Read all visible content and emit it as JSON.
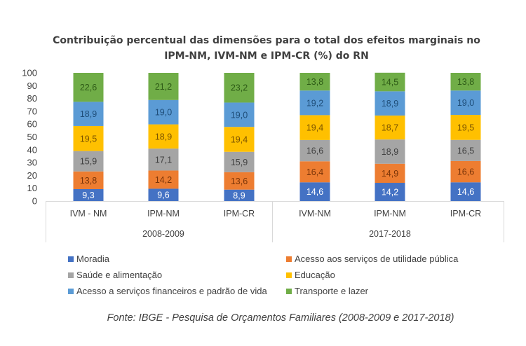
{
  "chart_data": {
    "type": "bar",
    "stacked": true,
    "title": "Contribuição percentual das dimensões para o total dos efeitos marginais no IPM-NM, IVM-NM e IPM-CR (%) do RN",
    "title_lines": [
      "Contribuição percentual das dimensões para o total dos efeitos marginais no",
      "IPM-NM, IVM-NM e IPM-CR (%) do RN"
    ],
    "xlabel": "",
    "ylabel": "",
    "ylim": [
      0,
      100
    ],
    "yticks": [
      "0",
      "10",
      "20",
      "30",
      "40",
      "50",
      "60",
      "70",
      "80",
      "90",
      "100"
    ],
    "grid": false,
    "groups": [
      {
        "label": "2008-2009",
        "categories": [
          "IVM - NM",
          "IPM-NM",
          "IPM-CR"
        ]
      },
      {
        "label": "2017-2018",
        "categories": [
          "IVM-NM",
          "IPM-NM",
          "IPM-CR"
        ]
      }
    ],
    "categories": [
      "IVM - NM",
      "IPM-NM",
      "IPM-CR",
      "IVM-NM",
      "IPM-NM",
      "IPM-CR"
    ],
    "series": [
      {
        "name": "Moradia",
        "color": "#4472C4",
        "label_color": "#ffffff",
        "values": [
          9.3,
          9.6,
          8.9,
          14.6,
          14.2,
          14.6
        ],
        "labels": [
          "9,3",
          "9,6",
          "8,9",
          "14,6",
          "14,2",
          "14,6"
        ]
      },
      {
        "name": "Acesso aos serviços de utilidade pública",
        "color": "#ED7D31",
        "label_color": "#7a3408",
        "values": [
          13.8,
          14.2,
          13.6,
          16.4,
          14.9,
          16.6
        ],
        "labels": [
          "13,8",
          "14,2",
          "13,6",
          "16,4",
          "14,9",
          "16,6"
        ]
      },
      {
        "name": "Saúde e alimentação",
        "color": "#A5A5A5",
        "label_color": "#404040",
        "values": [
          15.9,
          17.1,
          15.9,
          16.6,
          18.9,
          16.5
        ],
        "labels": [
          "15,9",
          "17,1",
          "15,9",
          "16,6",
          "18,9",
          "16,5"
        ]
      },
      {
        "name": "Educação",
        "color": "#FFC000",
        "label_color": "#7a5200",
        "values": [
          19.5,
          18.9,
          19.4,
          19.4,
          18.7,
          19.5
        ],
        "labels": [
          "19,5",
          "18,9",
          "19,4",
          "19,4",
          "18,7",
          "19,5"
        ]
      },
      {
        "name": "Acesso a serviços financeiros e padrão de vida",
        "color": "#5B9BD5",
        "label_color": "#1f4e79",
        "values": [
          18.9,
          19.0,
          19.0,
          19.2,
          18.9,
          19.0
        ],
        "labels": [
          "18,9",
          "19,0",
          "19,0",
          "19,2",
          "18,9",
          "19,0"
        ]
      },
      {
        "name": "Transporte e lazer",
        "color": "#70AD47",
        "label_color": "#2d5a16",
        "values": [
          22.6,
          21.2,
          23.2,
          13.8,
          14.5,
          13.8
        ],
        "labels": [
          "22,6",
          "21,2",
          "23,2",
          "13,8",
          "14,5",
          "13,8"
        ]
      }
    ],
    "legend": {
      "placement": "bottom",
      "order": [
        "Moradia",
        "Acesso aos serviços de utilidade pública",
        "Saúde e alimentação",
        "Educação",
        "Acesso a serviços financeiros e padrão de vida",
        "Transporte e lazer"
      ]
    },
    "source": "Fonte: IBGE - Pesquisa de Orçamentos Familiares (2008-2009 e 2017-2018)"
  }
}
